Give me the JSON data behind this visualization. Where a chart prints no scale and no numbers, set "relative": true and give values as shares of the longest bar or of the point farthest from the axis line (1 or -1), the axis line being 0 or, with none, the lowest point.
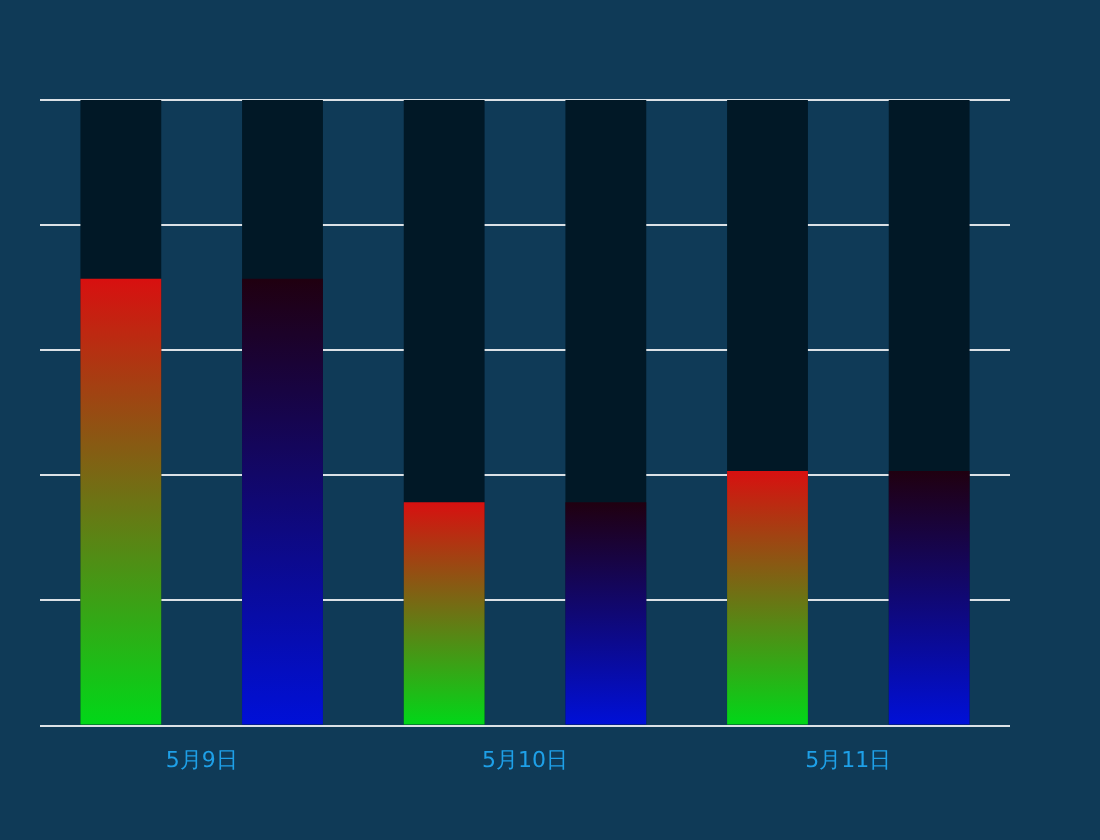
{
  "chart_data": {
    "type": "bar",
    "relative": true,
    "grid": "y",
    "legend": false,
    "categories": [
      "5月9日",
      "5月10日",
      "5月11日"
    ],
    "series": [
      {
        "color": "#00d818",
        "values": [
          1,
          0.5,
          0.57
        ]
      },
      {
        "color": "#0010d8",
        "values": [
          1,
          0.5,
          0.57
        ]
      }
    ]
  }
}
